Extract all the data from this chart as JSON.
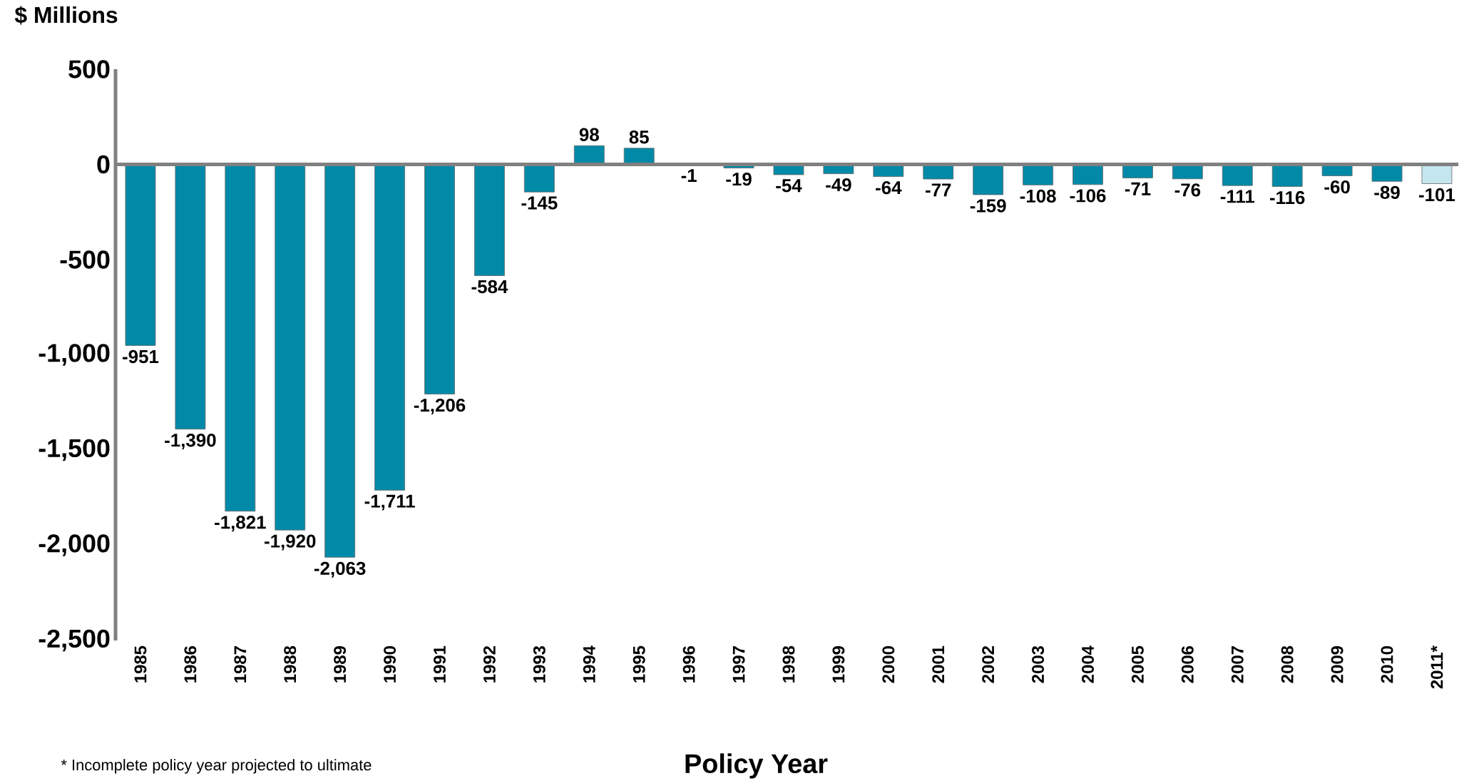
{
  "chart_data": {
    "type": "bar",
    "ylabel": "$ Millions",
    "xlabel": "Policy Year",
    "annotations": [
      "* Incomplete policy year projected to ultimate"
    ],
    "categories": [
      "1985",
      "1986",
      "1987",
      "1988",
      "1989",
      "1990",
      "1991",
      "1992",
      "1993",
      "1994",
      "1995",
      "1996",
      "1997",
      "1998",
      "1999",
      "2000",
      "2001",
      "2002",
      "2003",
      "2004",
      "2005",
      "2006",
      "2007",
      "2008",
      "2009",
      "2010",
      "2011*"
    ],
    "values": [
      -951,
      -1390,
      -1821,
      -1920,
      -2063,
      -1711,
      -1206,
      -584,
      -145,
      98,
      85,
      -1,
      -19,
      -54,
      -49,
      -64,
      -77,
      -159,
      -108,
      -106,
      -71,
      -76,
      -111,
      -116,
      -60,
      -89,
      -101
    ],
    "value_labels": [
      "-951",
      "-1,390",
      "-1,821",
      "-1,920",
      "-2,063",
      "-1,711",
      "-1,206",
      "-584",
      "-145",
      "98",
      "85",
      "-1",
      "-19",
      "-54",
      "-49",
      "-64",
      "-77",
      "-159",
      "-108",
      "-106",
      "-71",
      "-76",
      "-111",
      "-116",
      "-60",
      "-89",
      "-101"
    ],
    "colors": [
      "#008aa8",
      "#008aa8",
      "#008aa8",
      "#008aa8",
      "#008aa8",
      "#008aa8",
      "#008aa8",
      "#008aa8",
      "#008aa8",
      "#008aa8",
      "#008aa8",
      "#008aa8",
      "#008aa8",
      "#008aa8",
      "#008aa8",
      "#008aa8",
      "#008aa8",
      "#008aa8",
      "#008aa8",
      "#008aa8",
      "#008aa8",
      "#008aa8",
      "#008aa8",
      "#008aa8",
      "#008aa8",
      "#008aa8",
      "#c4e6ee"
    ],
    "ylim": [
      -2500,
      500
    ],
    "yticks": [
      {
        "value": -2500,
        "label": "-2,500"
      },
      {
        "value": -2000,
        "label": "-2,000"
      },
      {
        "value": -1500,
        "label": "-1,500"
      },
      {
        "value": -1000,
        "label": "-1,000"
      },
      {
        "value": -500,
        "label": "-500"
      },
      {
        "value": 0,
        "label": "0"
      },
      {
        "value": 500,
        "label": "500"
      }
    ]
  }
}
